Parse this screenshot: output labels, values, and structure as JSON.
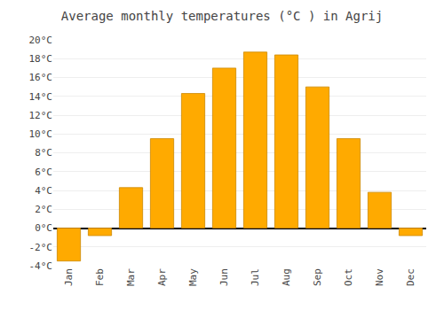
{
  "chart_data": {
    "type": "bar",
    "title": "Average monthly temperatures (°C ) in Agrij",
    "categories": [
      "Jan",
      "Feb",
      "Mar",
      "Apr",
      "May",
      "Jun",
      "Jul",
      "Aug",
      "Sep",
      "Oct",
      "Nov",
      "Dec"
    ],
    "values": [
      -3.5,
      -0.8,
      4.3,
      9.5,
      14.3,
      17.0,
      18.7,
      18.4,
      15.0,
      9.5,
      3.8,
      -0.8
    ],
    "color": "#FFAA00",
    "ylim": [
      -4,
      20
    ],
    "yticks": [
      {
        "value": -4,
        "label": "-4°C"
      },
      {
        "value": -2,
        "label": "-2°C"
      },
      {
        "value": 0,
        "label": "0°C"
      },
      {
        "value": 2,
        "label": "2°C"
      },
      {
        "value": 4,
        "label": "4°C"
      },
      {
        "value": 6,
        "label": "6°C"
      },
      {
        "value": 8,
        "label": "8°C"
      },
      {
        "value": 10,
        "label": "10°C"
      },
      {
        "value": 12,
        "label": "12°C"
      },
      {
        "value": 14,
        "label": "14°C"
      },
      {
        "value": 16,
        "label": "16°C"
      },
      {
        "value": 18,
        "label": "18°C"
      },
      {
        "value": 20,
        "label": "20°C"
      }
    ],
    "grid": true
  }
}
